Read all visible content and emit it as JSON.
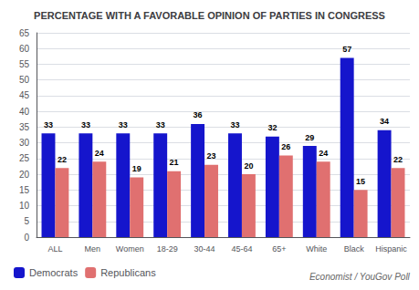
{
  "chart_data": {
    "type": "bar",
    "title": "PERCENTAGE WITH A FAVORABLE OPINION OF PARTIES IN CONGRESS",
    "annotation": "Economist / YouGov Poll",
    "categories": [
      "ALL",
      "Men",
      "Women",
      "18-29",
      "30-44",
      "45-64",
      "65+",
      "White",
      "Black",
      "Hispanic"
    ],
    "series": [
      {
        "name": "Democrats",
        "color": "#1515cc",
        "values": [
          33,
          33,
          33,
          33,
          36,
          33,
          32,
          29,
          57,
          34
        ]
      },
      {
        "name": "Republicans",
        "color": "#e07070",
        "values": [
          22,
          24,
          19,
          21,
          23,
          20,
          26,
          24,
          15,
          22
        ]
      }
    ],
    "ylim": [
      0,
      65
    ],
    "yticks": [
      0,
      5,
      10,
      15,
      20,
      25,
      30,
      35,
      40,
      45,
      50,
      55,
      60,
      65
    ],
    "grid": true,
    "legend": "lower left",
    "data_labels": true
  }
}
